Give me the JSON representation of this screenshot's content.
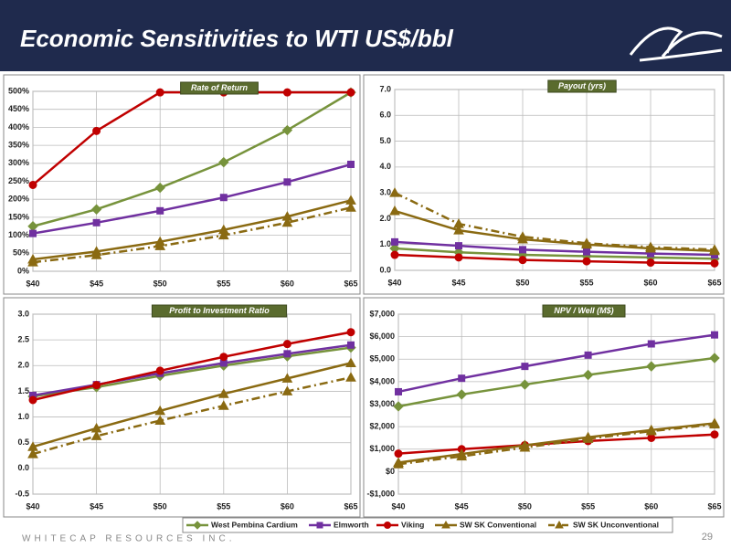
{
  "slide_title": "Economic Sensitivities to WTI US$/bbl",
  "footer": "WHITECAP RESOURCES INC.",
  "page_number": "29",
  "chart_data": [
    {
      "type": "line",
      "title": "Rate of Return",
      "grid": true,
      "categories": [
        "$40",
        "$45",
        "$50",
        "$55",
        "$60",
        "$65"
      ],
      "ylim": [
        0,
        500
      ],
      "yticks": [
        {
          "value": 0,
          "label": "0%"
        },
        {
          "value": 50,
          "label": "50%"
        },
        {
          "value": 100,
          "label": "100%"
        },
        {
          "value": 150,
          "label": "150%"
        },
        {
          "value": 200,
          "label": "200%"
        },
        {
          "value": 250,
          "label": "250%"
        },
        {
          "value": 300,
          "label": "300%"
        },
        {
          "value": 350,
          "label": "350%"
        },
        {
          "value": 400,
          "label": "400%"
        },
        {
          "value": 450,
          "label": "450%"
        },
        {
          "value": 500,
          "label": "500%"
        }
      ],
      "series": [
        {
          "name": "West Pembina Cardium",
          "color": "#77933c",
          "marker": "diamond",
          "dash": false,
          "values": [
            125,
            172,
            232,
            303,
            392,
            497
          ]
        },
        {
          "name": "Elmworth",
          "color": "#7030a0",
          "marker": "square",
          "dash": false,
          "values": [
            105,
            135,
            168,
            205,
            248,
            297
          ]
        },
        {
          "name": "Viking",
          "color": "#c00000",
          "marker": "circle",
          "dash": false,
          "values": [
            240,
            390,
            497,
            497,
            497,
            497
          ]
        },
        {
          "name": "SW SK Conventional",
          "color": "#8a6a12",
          "marker": "triangle",
          "dash": false,
          "values": [
            33,
            55,
            82,
            115,
            152,
            197
          ]
        },
        {
          "name": "SW SK Unconventional",
          "color": "#8a6a12",
          "marker": "triangle",
          "dash": true,
          "values": [
            25,
            45,
            70,
            100,
            135,
            177
          ]
        }
      ]
    },
    {
      "type": "line",
      "title": "Payout (yrs)",
      "grid": true,
      "categories": [
        "$40",
        "$45",
        "$50",
        "$55",
        "$60",
        "$65"
      ],
      "ylim": [
        0,
        7
      ],
      "yticks": [
        {
          "value": 0,
          "label": "0.0"
        },
        {
          "value": 1,
          "label": "1.0"
        },
        {
          "value": 2,
          "label": "2.0"
        },
        {
          "value": 3,
          "label": "3.0"
        },
        {
          "value": 4,
          "label": "4.0"
        },
        {
          "value": 5,
          "label": "5.0"
        },
        {
          "value": 6,
          "label": "6.0"
        },
        {
          "value": 7,
          "label": "7.0"
        }
      ],
      "series": [
        {
          "color": "#77933c",
          "marker": "diamond",
          "dash": false,
          "values": [
            0.85,
            0.7,
            0.6,
            0.55,
            0.5,
            0.45
          ]
        },
        {
          "color": "#7030a0",
          "marker": "square",
          "dash": false,
          "values": [
            1.1,
            0.95,
            0.8,
            0.72,
            0.65,
            0.6
          ]
        },
        {
          "color": "#c00000",
          "marker": "circle",
          "dash": false,
          "values": [
            0.6,
            0.5,
            0.4,
            0.35,
            0.3,
            0.27
          ]
        },
        {
          "color": "#8a6a12",
          "marker": "triangle",
          "dash": false,
          "values": [
            2.3,
            1.55,
            1.2,
            1.0,
            0.85,
            0.75
          ]
        },
        {
          "color": "#8a6a12",
          "marker": "triangle",
          "dash": true,
          "values": [
            3.0,
            1.8,
            1.3,
            1.05,
            0.9,
            0.8
          ]
        }
      ]
    },
    {
      "type": "line",
      "title": "Profit to Investment Ratio",
      "grid": true,
      "categories": [
        "$40",
        "$45",
        "$50",
        "$55",
        "$60",
        "$65"
      ],
      "ylim": [
        -0.5,
        3.0
      ],
      "yticks": [
        -0.5,
        {
          "value": 0,
          "label": "0.0"
        },
        0.5,
        {
          "value": 1,
          "label": "1.0"
        },
        1.5,
        {
          "value": 2,
          "label": "2.0"
        },
        2.5,
        {
          "value": 3,
          "label": "3.0"
        }
      ],
      "series": [
        {
          "color": "#77933c",
          "marker": "diamond",
          "dash": false,
          "values": [
            1.4,
            1.58,
            1.8,
            2.0,
            2.18,
            2.35
          ]
        },
        {
          "color": "#7030a0",
          "marker": "square",
          "dash": false,
          "values": [
            1.42,
            1.63,
            1.85,
            2.05,
            2.23,
            2.4
          ]
        },
        {
          "color": "#c00000",
          "marker": "circle",
          "dash": false,
          "values": [
            1.33,
            1.62,
            1.9,
            2.17,
            2.42,
            2.65
          ]
        },
        {
          "color": "#8a6a12",
          "marker": "triangle",
          "dash": false,
          "values": [
            0.42,
            0.78,
            1.12,
            1.45,
            1.75,
            2.05
          ]
        },
        {
          "color": "#8a6a12",
          "marker": "triangle",
          "dash": true,
          "values": [
            0.28,
            0.63,
            0.93,
            1.22,
            1.5,
            1.77
          ]
        }
      ]
    },
    {
      "type": "line",
      "title": "NPV / Well (M$)",
      "grid": true,
      "categories": [
        "$40",
        "$45",
        "$50",
        "$55",
        "$60",
        "$65"
      ],
      "ylim": [
        -1000,
        7000
      ],
      "yticks": [
        {
          "value": -1000,
          "label": "-$1,000"
        },
        {
          "value": 0,
          "label": "$0"
        },
        {
          "value": 1000,
          "label": "$1,000"
        },
        {
          "value": 2000,
          "label": "$2,000"
        },
        {
          "value": 3000,
          "label": "$3,000"
        },
        {
          "value": 4000,
          "label": "$4,000"
        },
        {
          "value": 5000,
          "label": "$5,000"
        },
        {
          "value": 6000,
          "label": "$6,000"
        },
        {
          "value": 7000,
          "label": "$7,000"
        }
      ],
      "series": [
        {
          "color": "#77933c",
          "marker": "diamond",
          "dash": false,
          "values": [
            2900,
            3430,
            3870,
            4300,
            4680,
            5050
          ]
        },
        {
          "color": "#7030a0",
          "marker": "square",
          "dash": false,
          "values": [
            3550,
            4150,
            4680,
            5180,
            5680,
            6080
          ]
        },
        {
          "color": "#c00000",
          "marker": "circle",
          "dash": false,
          "values": [
            800,
            1000,
            1180,
            1360,
            1500,
            1650
          ]
        },
        {
          "color": "#8a6a12",
          "marker": "triangle",
          "dash": false,
          "values": [
            400,
            780,
            1170,
            1530,
            1850,
            2150
          ]
        },
        {
          "color": "#8a6a12",
          "marker": "triangle",
          "dash": true,
          "values": [
            330,
            680,
            1070,
            1460,
            1800,
            2100
          ]
        }
      ]
    }
  ]
}
